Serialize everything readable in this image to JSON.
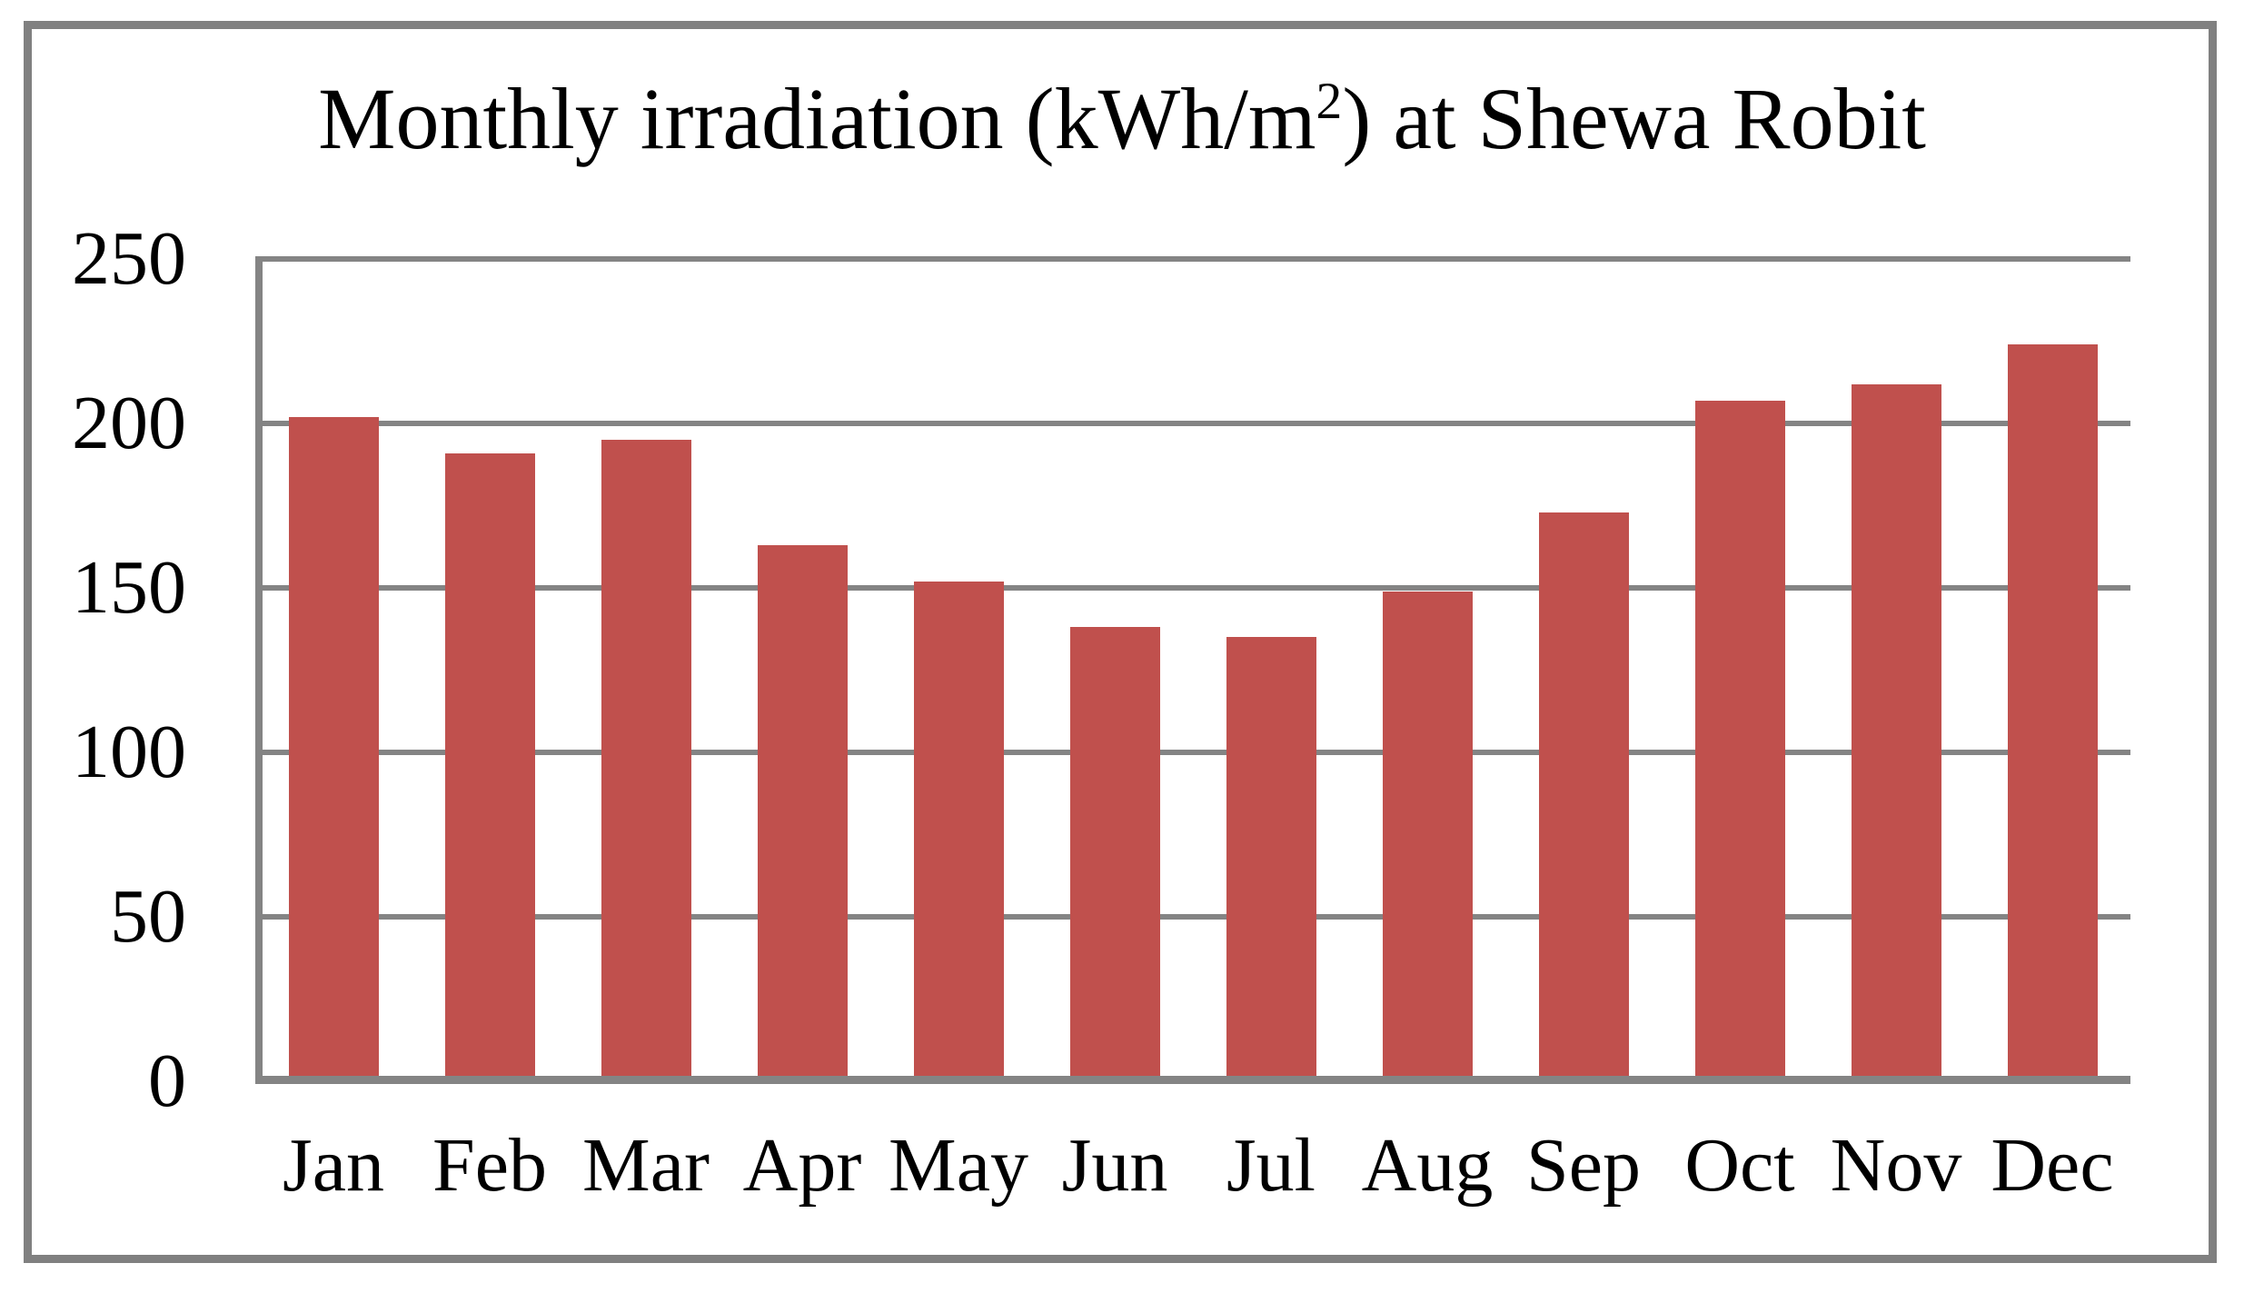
{
  "chart_data": {
    "type": "bar",
    "title": {
      "prefix": "Monthly irradiation (kWh/m",
      "superscript": "2",
      "suffix": ") at Shewa Robit"
    },
    "categories": [
      "Jan",
      "Feb",
      "Mar",
      "Apr",
      "May",
      "Jun",
      "Jul",
      "Aug",
      "Sep",
      "Oct",
      "Nov",
      "Dec"
    ],
    "values": [
      202,
      191,
      195,
      163,
      152,
      138,
      135,
      149,
      173,
      207,
      212,
      224
    ],
    "xlabel": "",
    "ylabel": "",
    "ylim": [
      0,
      250
    ],
    "yticks": [
      0,
      50,
      100,
      150,
      200,
      250
    ],
    "grid": "horizontal-only",
    "legend_position": "none",
    "colors": {
      "bar": "#C0504D",
      "axis": "#848484",
      "frame": "#808080",
      "text": "#000000",
      "background": "#FFFFFF"
    }
  }
}
